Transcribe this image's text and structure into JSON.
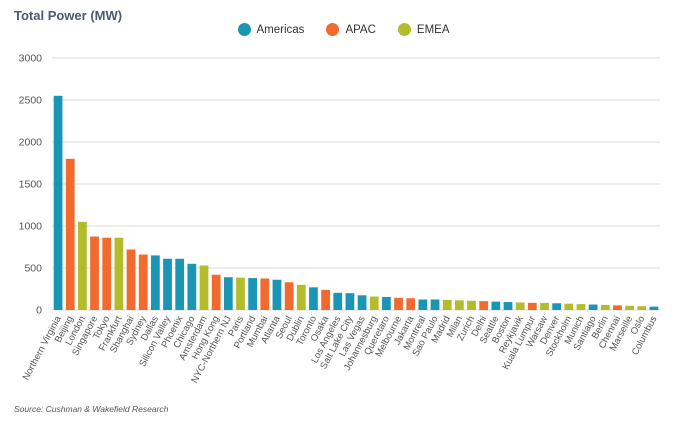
{
  "colors": {
    "Americas": "#1a96b4",
    "APAC": "#f26a2e",
    "EMEA": "#b3bc2a",
    "grid": "#cfcfcf",
    "text": "#555555"
  },
  "source": "Source: Cushman & Wakefield Research",
  "chart_data": {
    "type": "bar",
    "title": "Total Power (MW)",
    "xlabel": "",
    "ylabel": "",
    "ylim": [
      0,
      3000
    ],
    "yticks": [
      0,
      500,
      1000,
      1500,
      2000,
      2500,
      3000
    ],
    "grid": true,
    "legend": {
      "position": "top-center",
      "entries": [
        "Americas",
        "APAC",
        "EMEA"
      ]
    },
    "categories": [
      "Northern Virginia",
      "Beijing",
      "London",
      "Singapore",
      "Tokyo",
      "Frankfurt",
      "Shanghai",
      "Sydney",
      "Dallas",
      "Silicon Valley",
      "Phoenix",
      "Chicago",
      "Amsterdam",
      "Hong Kong",
      "NYC-Northern NJ",
      "Paris",
      "Portland",
      "Mumbai",
      "Atlanta",
      "Seoul",
      "Dublin",
      "Toronto",
      "Osaka",
      "Los Angeles",
      "Salt Lake City",
      "Las Vegas",
      "Johannesburg",
      "Queretaro",
      "Melbourne",
      "Jakarta",
      "Montreal",
      "Sao Paulo",
      "Madrid",
      "Milan",
      "Zurich",
      "Delhi",
      "Seattle",
      "Boston",
      "Reykjavik",
      "Kuala Lumpur",
      "Warsaw",
      "Denver",
      "Stockholm",
      "Munich",
      "Santiago",
      "Berlin",
      "Chennai",
      "Marseille",
      "Oslo",
      "Columbus"
    ],
    "regions": [
      "Americas",
      "APAC",
      "EMEA",
      "APAC",
      "APAC",
      "EMEA",
      "APAC",
      "APAC",
      "Americas",
      "Americas",
      "Americas",
      "Americas",
      "EMEA",
      "APAC",
      "Americas",
      "EMEA",
      "Americas",
      "APAC",
      "Americas",
      "APAC",
      "EMEA",
      "Americas",
      "APAC",
      "Americas",
      "Americas",
      "Americas",
      "EMEA",
      "Americas",
      "APAC",
      "APAC",
      "Americas",
      "Americas",
      "EMEA",
      "EMEA",
      "EMEA",
      "APAC",
      "Americas",
      "Americas",
      "EMEA",
      "APAC",
      "EMEA",
      "Americas",
      "EMEA",
      "EMEA",
      "Americas",
      "EMEA",
      "APAC",
      "EMEA",
      "EMEA",
      "Americas"
    ],
    "values": [
      2550,
      1800,
      1050,
      875,
      860,
      860,
      720,
      660,
      650,
      610,
      610,
      550,
      530,
      420,
      390,
      385,
      380,
      375,
      360,
      330,
      300,
      270,
      240,
      205,
      200,
      175,
      160,
      155,
      145,
      140,
      125,
      125,
      120,
      115,
      110,
      105,
      100,
      95,
      90,
      85,
      85,
      80,
      75,
      70,
      65,
      60,
      55,
      50,
      45,
      40
    ]
  }
}
